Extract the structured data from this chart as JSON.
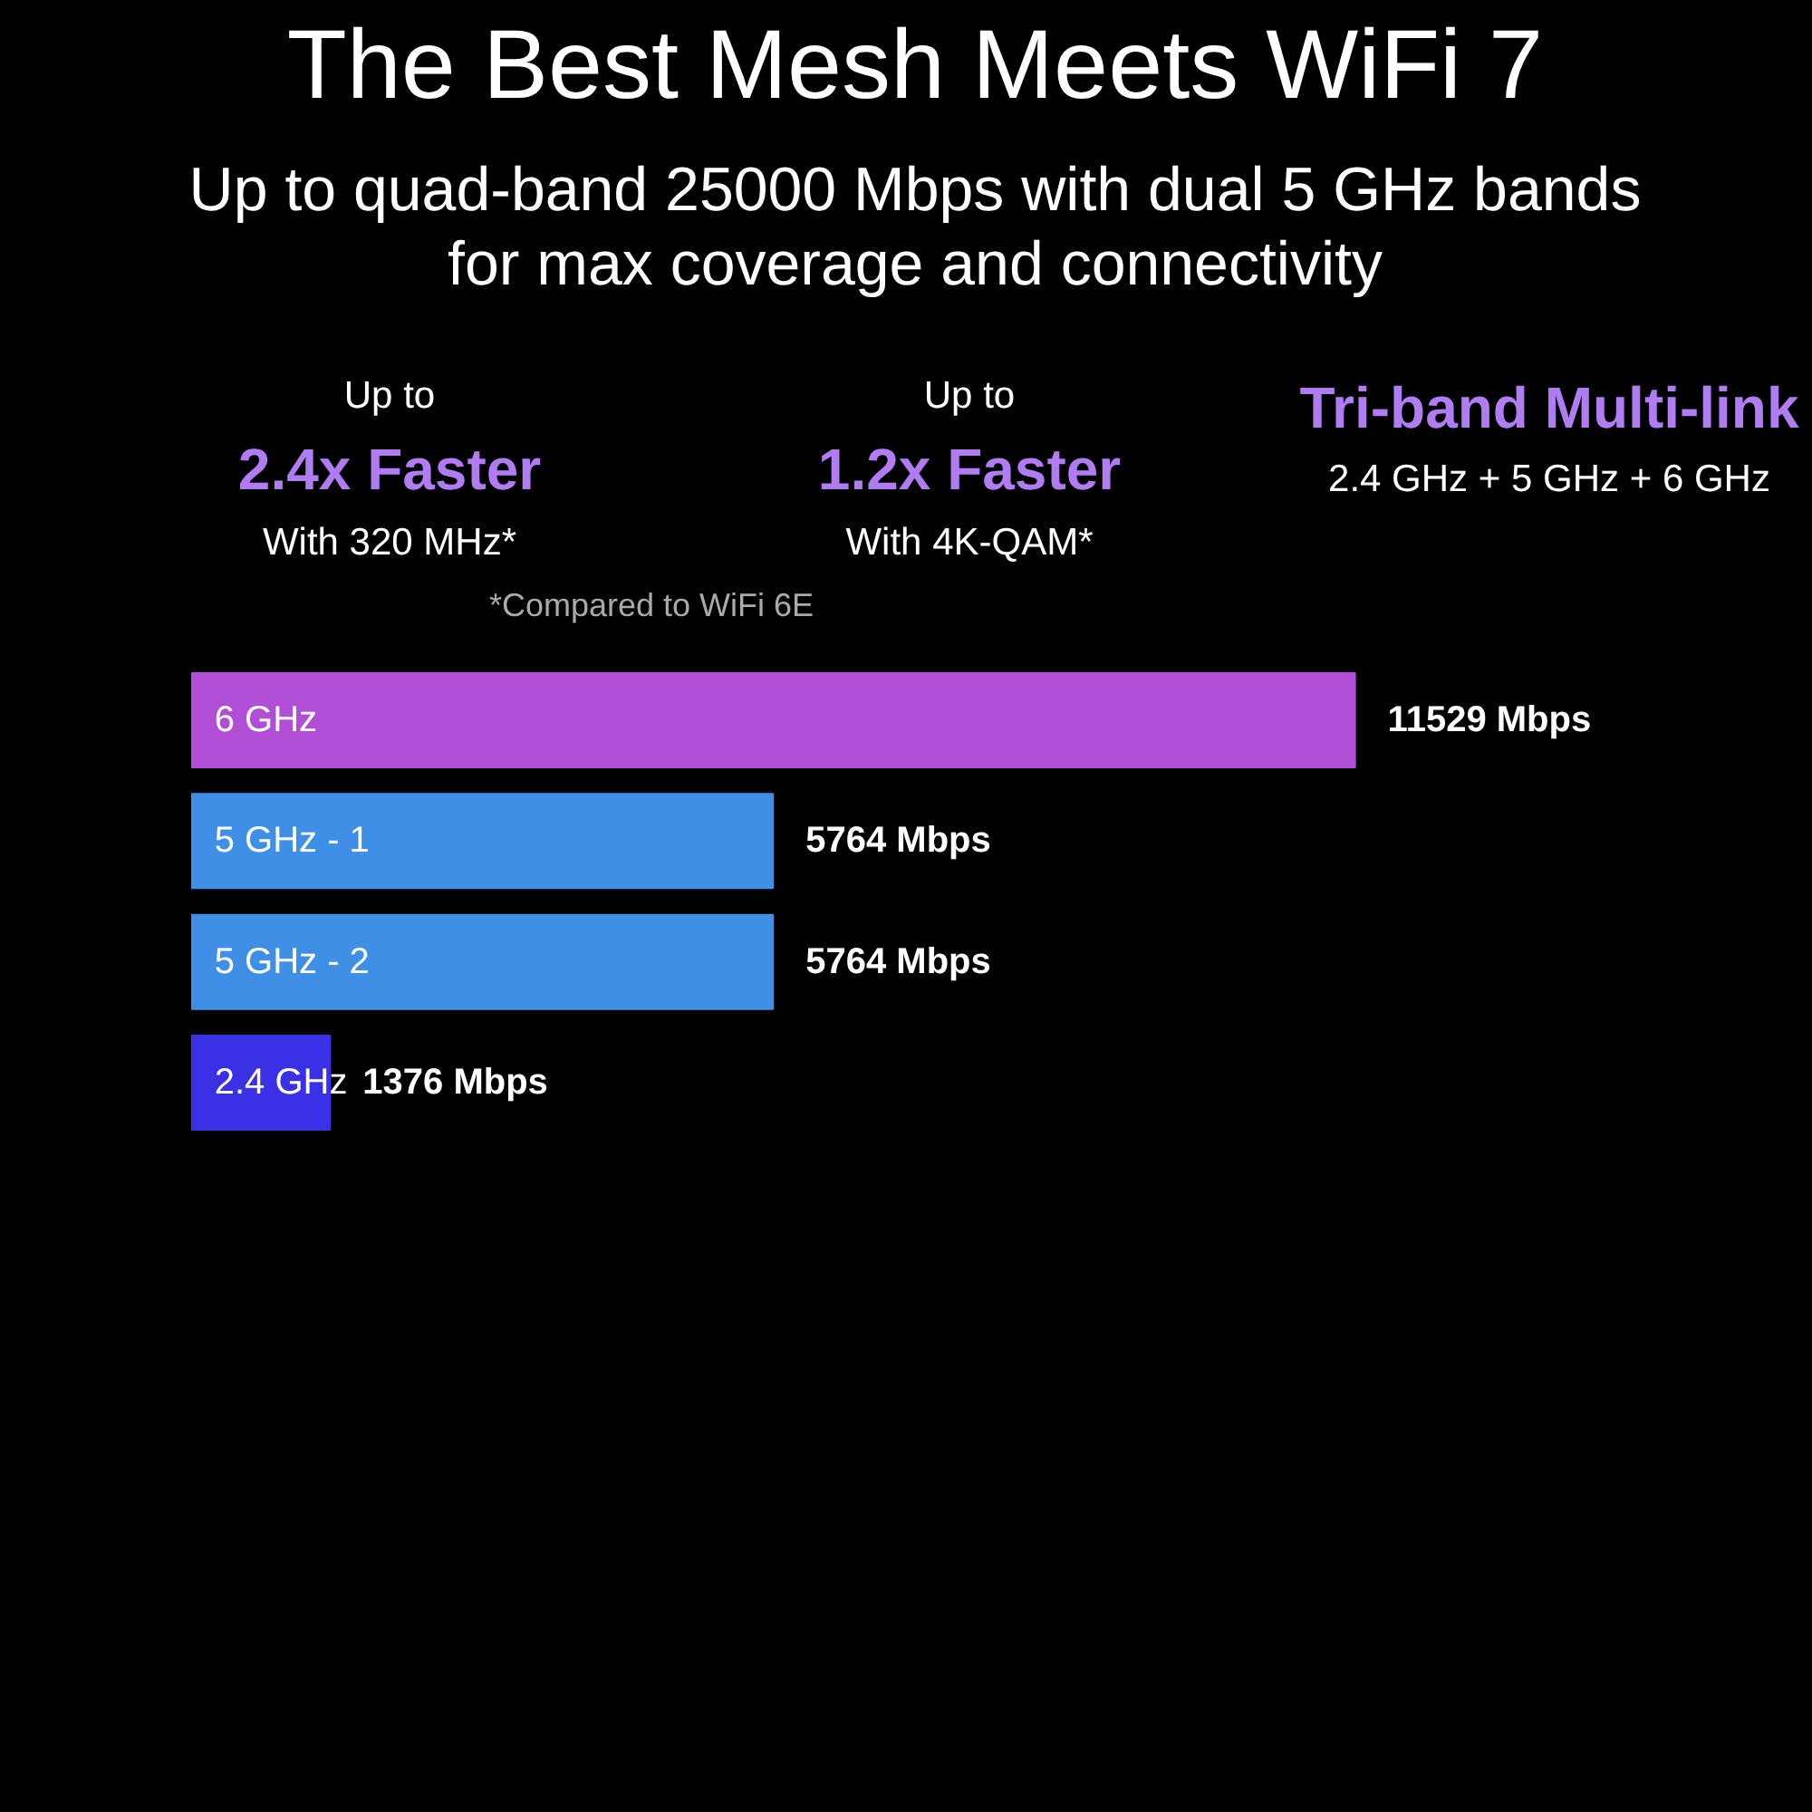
{
  "chart_data": {
    "type": "bar",
    "orientation": "horizontal",
    "title": "The Best Mesh Meets WiFi 7",
    "subtitle": "Up to quad-band 25000 Mbps with dual 5 GHz bands for max coverage and connectivity",
    "categories": [
      "6 GHz",
      "5 GHz - 1",
      "5 GHz - 2",
      "2.4 GHz"
    ],
    "values": [
      11529,
      5764,
      5764,
      1376
    ],
    "colors": [
      "#b04fd6",
      "#3f8fe6",
      "#3f8fe6",
      "#3a30e6"
    ],
    "value_labels": [
      "11529 Mbps",
      "5764 Mbps",
      "5764 Mbps",
      "1376 Mbps"
    ],
    "annotations": [
      "Up to",
      "2.4x Faster",
      "With 320 MHz*",
      "Up to",
      "1.2x Faster",
      "With 4K-QAM*",
      "Tri-band Multi-link",
      "2.4 GHz + 5 GHz + 6 GHz",
      "*Compared to WiFi 6E"
    ]
  }
}
